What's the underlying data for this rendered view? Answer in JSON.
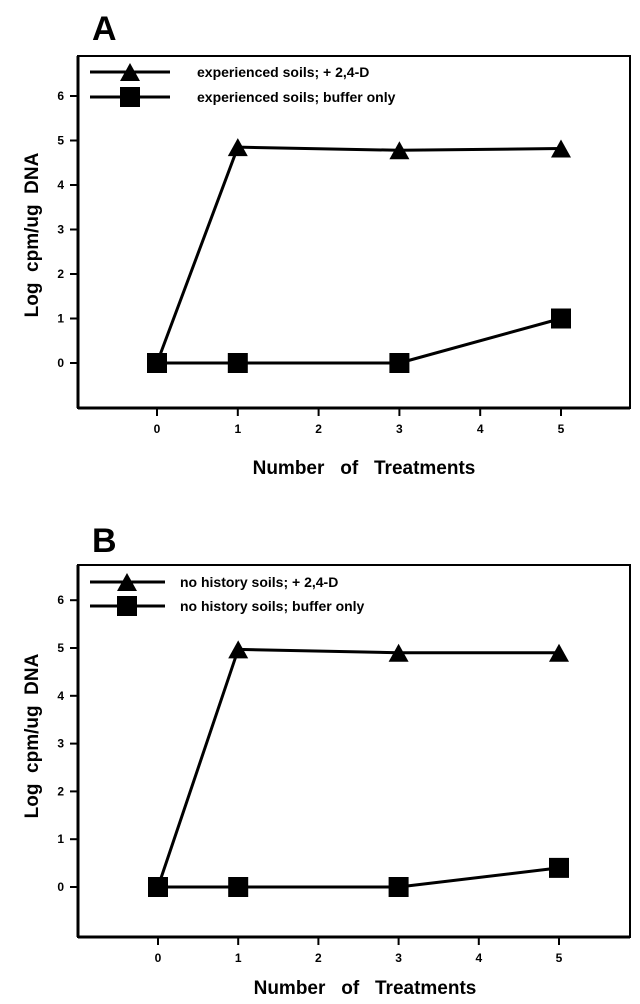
{
  "chart_data": [
    {
      "type": "line",
      "panel_label": "A",
      "xlabel": "Number   of   Treatments",
      "ylabel": "Log  cpm/ug  DNA",
      "xlim": [
        -1,
        6
      ],
      "ylim": [
        -1,
        7
      ],
      "xticks": [
        0,
        1,
        2,
        3,
        4,
        5
      ],
      "yticks": [
        0,
        1,
        2,
        3,
        4,
        5,
        6
      ],
      "grid": false,
      "legend_position": "top-left",
      "series": [
        {
          "name": "experienced soils; + 2,4-D",
          "marker": "triangle",
          "x": [
            0,
            1,
            3,
            5
          ],
          "y": [
            0,
            4.85,
            4.78,
            4.82
          ]
        },
        {
          "name": "experienced soils; buffer only",
          "marker": "square",
          "x": [
            0,
            1,
            3,
            5
          ],
          "y": [
            0,
            0,
            0,
            1.0
          ]
        }
      ]
    },
    {
      "type": "line",
      "panel_label": "B",
      "xlabel": "Number   of   Treatments",
      "ylabel": "Log  cpm/ug  DNA",
      "xlim": [
        -1,
        6
      ],
      "ylim": [
        -1,
        7
      ],
      "xticks": [
        0,
        1,
        2,
        3,
        4,
        5
      ],
      "yticks": [
        0,
        1,
        2,
        3,
        4,
        5,
        6
      ],
      "grid": false,
      "legend_position": "top-left",
      "series": [
        {
          "name": "no history soils; + 2,4-D",
          "marker": "triangle",
          "x": [
            0,
            1,
            3,
            5
          ],
          "y": [
            0,
            4.97,
            4.9,
            4.9
          ]
        },
        {
          "name": "no history soils; buffer only",
          "marker": "square",
          "x": [
            0,
            1,
            3,
            5
          ],
          "y": [
            0,
            0,
            0,
            0.4
          ]
        }
      ]
    }
  ]
}
